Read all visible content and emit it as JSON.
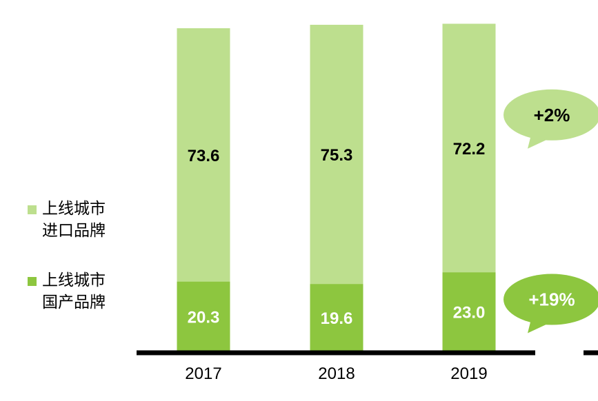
{
  "chart_data": {
    "type": "bar",
    "stacked": true,
    "categories": [
      "2017",
      "2018",
      "2019"
    ],
    "series": [
      {
        "name": "上线城市国产品牌",
        "values": [
          20.3,
          19.6,
          23.0
        ],
        "labels": [
          "20.3",
          "19.6",
          "23.0"
        ],
        "color": "#8dc63f",
        "label_color": "#ffffff"
      },
      {
        "name": "上线城市进口品牌",
        "values": [
          73.6,
          75.3,
          72.2
        ],
        "labels": [
          "73.6",
          "75.3",
          "72.2"
        ],
        "color": "#bddf8e",
        "label_color": "#000000"
      }
    ],
    "annotations": [
      {
        "text": "+2%",
        "series": "上线城市进口品牌",
        "fill": "#bddf8e",
        "text_color": "#000000"
      },
      {
        "text": "+19%",
        "series": "上线城市国产品牌",
        "fill": "#8dc63f",
        "text_color": "#ffffff"
      }
    ],
    "ylim": [
      0,
      100
    ],
    "title": "",
    "xlabel": "",
    "ylabel": "",
    "legend_position": "left"
  },
  "legend": {
    "imported": {
      "line1": "上线城市",
      "line2": "进口品牌",
      "color": "#bddf8e"
    },
    "domestic": {
      "line1": "上线城市",
      "line2": "国产品牌",
      "color": "#8dc63f"
    }
  }
}
